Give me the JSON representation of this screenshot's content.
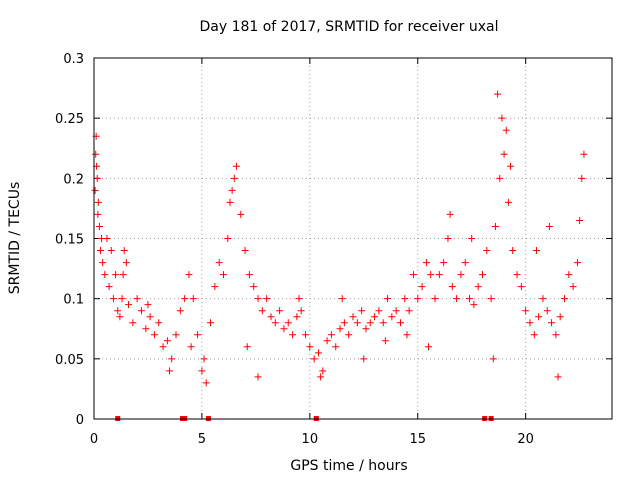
{
  "chart_data": {
    "type": "scatter",
    "title": "Day 181 of 2017, SRMTID for receiver uxal",
    "xlabel": "GPS time / hours",
    "ylabel": "SRMTID / TECUs",
    "xlim": [
      0,
      24
    ],
    "ylim": [
      0,
      0.3
    ],
    "x_ticks": [
      0,
      5,
      10,
      15,
      20
    ],
    "x_tick_labels": [
      "0",
      "5",
      "10",
      "15",
      "20"
    ],
    "y_ticks": [
      0,
      0.05,
      0.1,
      0.15,
      0.2,
      0.25,
      0.3
    ],
    "y_tick_labels": [
      "0",
      "0.05",
      "0.1",
      "0.15",
      "0.2",
      "0.25",
      "0.3"
    ],
    "grid": true,
    "marker": "plus",
    "color": "#ff0000",
    "zero_markers_x": [
      1.1,
      4.1,
      4.2,
      5.3,
      10.3,
      18.1,
      18.4
    ],
    "series": [
      {
        "name": "SRMTID",
        "points": [
          [
            0.05,
            0.19
          ],
          [
            0.1,
            0.235
          ],
          [
            0.12,
            0.21
          ],
          [
            0.15,
            0.2
          ],
          [
            0.2,
            0.18
          ],
          [
            0.25,
            0.16
          ],
          [
            0.3,
            0.14
          ],
          [
            0.4,
            0.13
          ],
          [
            0.5,
            0.12
          ],
          [
            0.6,
            0.15
          ],
          [
            0.7,
            0.11
          ],
          [
            0.8,
            0.14
          ],
          [
            0.9,
            0.1
          ],
          [
            1.0,
            0.12
          ],
          [
            1.1,
            0.09
          ],
          [
            1.2,
            0.085
          ],
          [
            1.3,
            0.1
          ],
          [
            1.4,
            0.14
          ],
          [
            1.5,
            0.13
          ],
          [
            1.6,
            0.095
          ],
          [
            1.8,
            0.08
          ],
          [
            2.0,
            0.1
          ],
          [
            2.2,
            0.09
          ],
          [
            2.4,
            0.075
          ],
          [
            2.6,
            0.085
          ],
          [
            2.8,
            0.07
          ],
          [
            3.0,
            0.08
          ],
          [
            3.2,
            0.06
          ],
          [
            3.4,
            0.065
          ],
          [
            3.6,
            0.05
          ],
          [
            3.8,
            0.07
          ],
          [
            4.0,
            0.09
          ],
          [
            4.2,
            0.1
          ],
          [
            4.4,
            0.12
          ],
          [
            4.6,
            0.1
          ],
          [
            4.8,
            0.07
          ],
          [
            5.0,
            0.04
          ],
          [
            5.2,
            0.03
          ],
          [
            5.4,
            0.08
          ],
          [
            5.6,
            0.11
          ],
          [
            5.8,
            0.13
          ],
          [
            6.0,
            0.12
          ],
          [
            6.2,
            0.15
          ],
          [
            6.4,
            0.19
          ],
          [
            6.6,
            0.21
          ],
          [
            6.8,
            0.17
          ],
          [
            7.0,
            0.14
          ],
          [
            7.2,
            0.12
          ],
          [
            7.4,
            0.11
          ],
          [
            7.6,
            0.1
          ],
          [
            7.8,
            0.09
          ],
          [
            8.0,
            0.1
          ],
          [
            8.2,
            0.085
          ],
          [
            8.4,
            0.08
          ],
          [
            8.6,
            0.09
          ],
          [
            8.8,
            0.075
          ],
          [
            9.0,
            0.08
          ],
          [
            9.2,
            0.07
          ],
          [
            9.4,
            0.085
          ],
          [
            9.6,
            0.09
          ],
          [
            9.8,
            0.07
          ],
          [
            10.0,
            0.06
          ],
          [
            10.2,
            0.05
          ],
          [
            10.4,
            0.055
          ],
          [
            10.6,
            0.04
          ],
          [
            10.8,
            0.065
          ],
          [
            11.0,
            0.07
          ],
          [
            11.2,
            0.06
          ],
          [
            11.4,
            0.075
          ],
          [
            11.6,
            0.08
          ],
          [
            11.8,
            0.07
          ],
          [
            12.0,
            0.085
          ],
          [
            12.2,
            0.08
          ],
          [
            12.4,
            0.09
          ],
          [
            12.6,
            0.075
          ],
          [
            12.8,
            0.08
          ],
          [
            13.0,
            0.085
          ],
          [
            13.2,
            0.09
          ],
          [
            13.4,
            0.08
          ],
          [
            13.6,
            0.1
          ],
          [
            13.8,
            0.085
          ],
          [
            14.0,
            0.09
          ],
          [
            14.2,
            0.08
          ],
          [
            14.4,
            0.1
          ],
          [
            14.6,
            0.09
          ],
          [
            14.8,
            0.12
          ],
          [
            15.0,
            0.1
          ],
          [
            15.2,
            0.11
          ],
          [
            15.4,
            0.13
          ],
          [
            15.6,
            0.12
          ],
          [
            15.8,
            0.1
          ],
          [
            16.0,
            0.12
          ],
          [
            16.2,
            0.13
          ],
          [
            16.4,
            0.15
          ],
          [
            16.6,
            0.11
          ],
          [
            16.8,
            0.1
          ],
          [
            17.0,
            0.12
          ],
          [
            17.2,
            0.13
          ],
          [
            17.4,
            0.1
          ],
          [
            17.6,
            0.095
          ],
          [
            17.8,
            0.11
          ],
          [
            18.0,
            0.12
          ],
          [
            18.2,
            0.14
          ],
          [
            18.4,
            0.1
          ],
          [
            18.6,
            0.16
          ],
          [
            18.8,
            0.2
          ],
          [
            19.0,
            0.22
          ],
          [
            19.2,
            0.18
          ],
          [
            19.4,
            0.14
          ],
          [
            19.6,
            0.12
          ],
          [
            19.8,
            0.11
          ],
          [
            20.0,
            0.09
          ],
          [
            20.2,
            0.08
          ],
          [
            20.4,
            0.07
          ],
          [
            20.6,
            0.085
          ],
          [
            20.8,
            0.1
          ],
          [
            21.0,
            0.09
          ],
          [
            21.2,
            0.08
          ],
          [
            21.4,
            0.07
          ],
          [
            21.6,
            0.085
          ],
          [
            21.8,
            0.1
          ],
          [
            22.0,
            0.12
          ],
          [
            22.2,
            0.11
          ],
          [
            22.4,
            0.13
          ],
          [
            22.6,
            0.2
          ],
          [
            22.7,
            0.22
          ],
          [
            18.7,
            0.27
          ],
          [
            18.9,
            0.25
          ],
          [
            19.1,
            0.24
          ],
          [
            19.3,
            0.21
          ],
          [
            6.5,
            0.2
          ],
          [
            6.3,
            0.18
          ],
          [
            0.08,
            0.22
          ],
          [
            0.18,
            0.17
          ],
          [
            0.35,
            0.15
          ],
          [
            1.35,
            0.12
          ],
          [
            2.5,
            0.095
          ],
          [
            3.5,
            0.04
          ],
          [
            4.5,
            0.06
          ],
          [
            5.1,
            0.05
          ],
          [
            7.1,
            0.06
          ],
          [
            7.6,
            0.035
          ],
          [
            9.5,
            0.1
          ],
          [
            10.5,
            0.035
          ],
          [
            11.5,
            0.1
          ],
          [
            12.5,
            0.05
          ],
          [
            13.5,
            0.065
          ],
          [
            14.5,
            0.07
          ],
          [
            15.5,
            0.06
          ],
          [
            16.5,
            0.17
          ],
          [
            17.5,
            0.15
          ],
          [
            18.5,
            0.05
          ],
          [
            20.5,
            0.14
          ],
          [
            21.1,
            0.16
          ],
          [
            21.5,
            0.035
          ],
          [
            22.5,
            0.165
          ]
        ]
      }
    ]
  }
}
